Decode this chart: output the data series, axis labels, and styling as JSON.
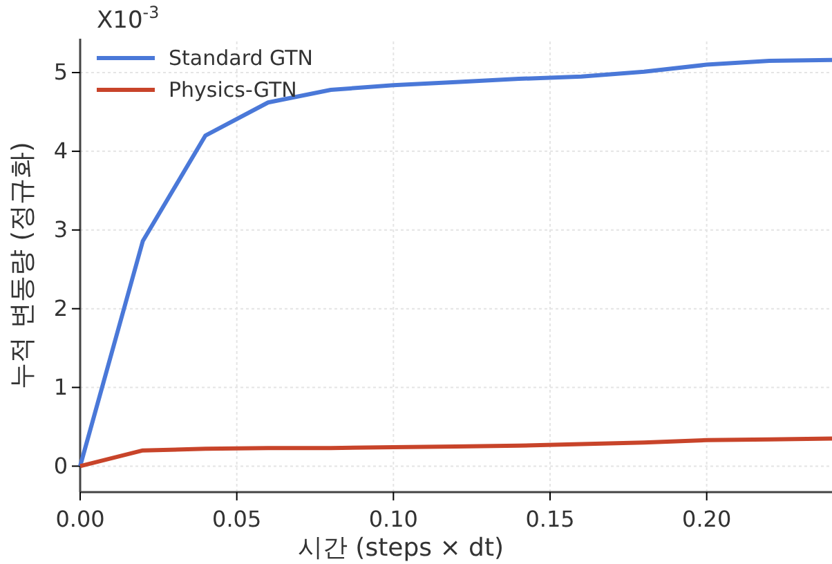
{
  "chart_data": {
    "type": "line",
    "xlabel": "시간 (steps × dt)",
    "ylabel": "누적 변동량 (정규화)",
    "annotations": [
      "X10$^{-3}$"
    ],
    "x": [
      0,
      0.02,
      0.04,
      0.06,
      0.08,
      0.1,
      0.12,
      0.14,
      0.16,
      0.18,
      0.2,
      0.22,
      0.24
    ],
    "series": [
      {
        "name": "Standard GTN",
        "color": "#4a78d8",
        "values": [
          0,
          2.86,
          4.2,
          4.62,
          4.78,
          4.84,
          4.88,
          4.92,
          4.95,
          5.01,
          5.1,
          5.15,
          5.16
        ]
      },
      {
        "name": "Physics-GTN",
        "color": "#c8442a",
        "values": [
          0,
          0.2,
          0.22,
          0.23,
          0.23,
          0.24,
          0.25,
          0.26,
          0.28,
          0.3,
          0.33,
          0.34,
          0.35
        ]
      }
    ],
    "xlim": [
      0,
      0.24
    ],
    "xticks": [
      {
        "value": 0,
        "label": "0.00"
      },
      {
        "value": 0.05,
        "label": "0.05"
      },
      {
        "value": 0.1,
        "label": "0.10"
      },
      {
        "value": 0.15,
        "label": "0.15"
      },
      {
        "value": 0.2,
        "label": "0.20"
      }
    ],
    "ylim": [
      -0.33,
      5.43
    ],
    "yticks": [
      0,
      1,
      2,
      3,
      4,
      5
    ],
    "grid": true,
    "legend": "top left",
    "marker": "none",
    "line_style": "solid"
  }
}
